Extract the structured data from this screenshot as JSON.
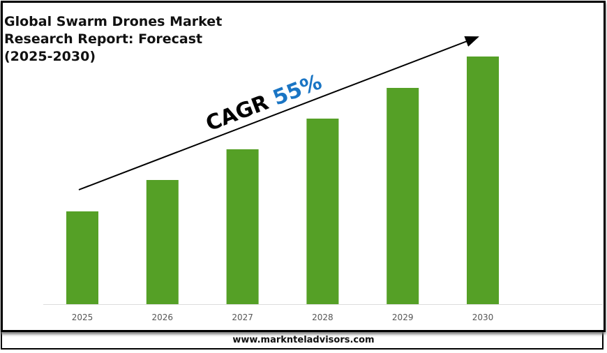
{
  "title_lines": [
    "Global Swarm Drones Market",
    "Research Report: Forecast",
    "(2025-2030)"
  ],
  "annotation": {
    "prefix": "CAGR",
    "value": "55%",
    "value_color": "#1a75c4"
  },
  "footer": "www.marknteladvisors.com",
  "chart_data": {
    "type": "bar",
    "title": "Global Swarm Drones Market Research Report: Forecast (2025-2030)",
    "categories": [
      "2025",
      "2026",
      "2027",
      "2028",
      "2029",
      "2030"
    ],
    "values": [
      133,
      178,
      222,
      266,
      310,
      355
    ],
    "value_note_unitless": true,
    "ylim": [
      0,
      355
    ],
    "bar_color": "#55a026",
    "grid": false,
    "legend": "none",
    "annotations": [
      "CAGR 55%"
    ]
  }
}
